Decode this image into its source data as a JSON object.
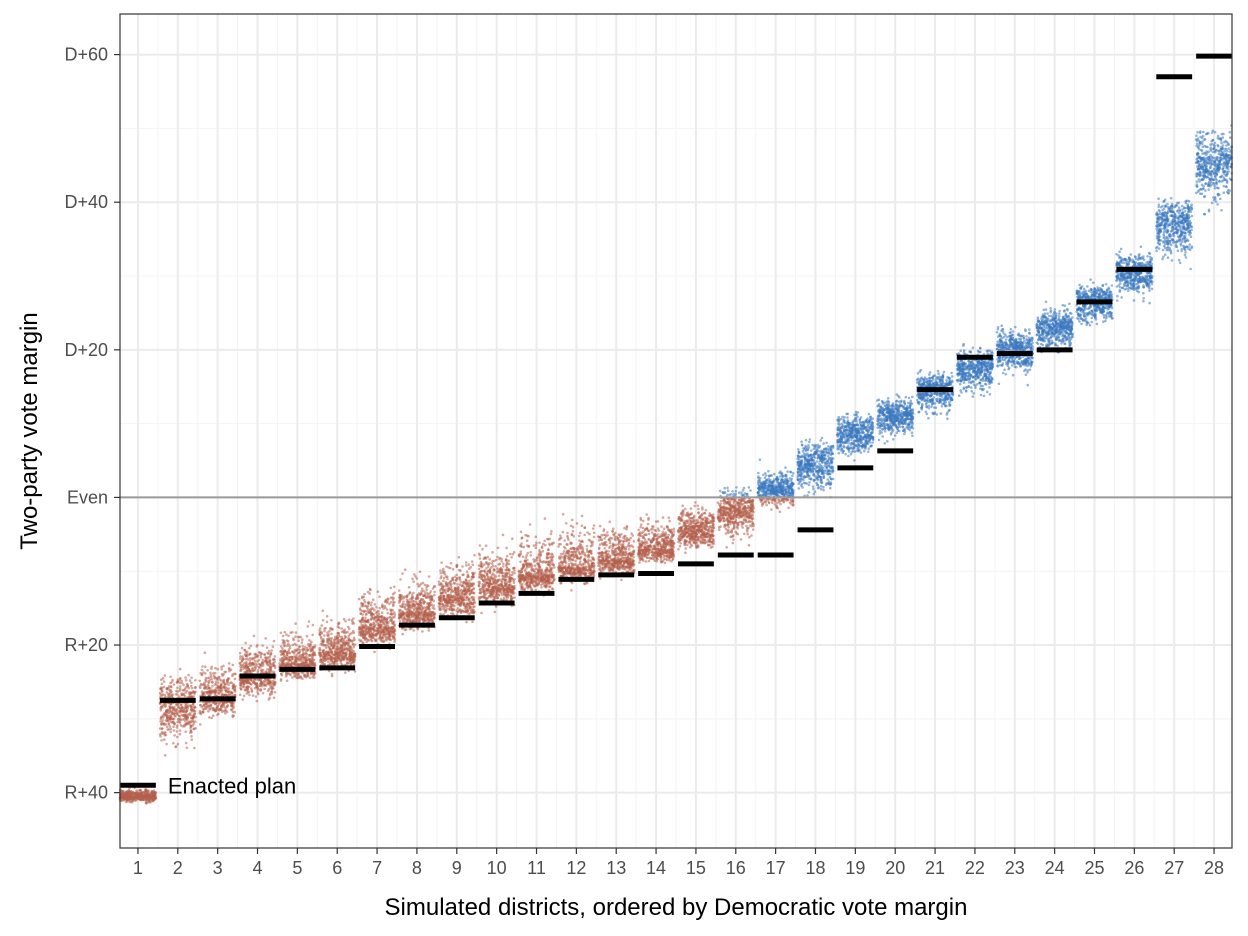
{
  "chart_data": {
    "type": "scatter",
    "xlabel": "Simulated districts, ordered by Democratic vote margin",
    "ylabel": "Two-party vote margin",
    "xlim": [
      0.55,
      28.45
    ],
    "ylim": [
      -47.5,
      65.5
    ],
    "x_ticks": [
      1,
      2,
      3,
      4,
      5,
      6,
      7,
      8,
      9,
      10,
      11,
      12,
      13,
      14,
      15,
      16,
      17,
      18,
      19,
      20,
      21,
      22,
      23,
      24,
      25,
      26,
      27,
      28
    ],
    "x_tick_labels": [
      "1",
      "2",
      "3",
      "4",
      "5",
      "6",
      "7",
      "8",
      "9",
      "10",
      "11",
      "12",
      "13",
      "14",
      "15",
      "16",
      "17",
      "18",
      "19",
      "20",
      "21",
      "22",
      "23",
      "24",
      "25",
      "26",
      "27",
      "28"
    ],
    "y_ticks": [
      60,
      40,
      20,
      0,
      -20,
      -40
    ],
    "y_tick_labels": [
      "D+60",
      "D+40",
      "D+20",
      "Even",
      "R+20",
      "R+40"
    ],
    "grid": true,
    "reference_line": {
      "y": 0,
      "color": "#9a9a9a"
    },
    "colors": {
      "democratic": "#3a78c0",
      "republican": "#b4604d",
      "enacted": "#000000"
    },
    "annotation": {
      "text": "Enacted plan",
      "district": 1
    },
    "simulated_districts": {
      "x": [
        1,
        2,
        3,
        4,
        5,
        6,
        7,
        8,
        9,
        10,
        11,
        12,
        13,
        14,
        15,
        16,
        17,
        18,
        19,
        20,
        21,
        22,
        23,
        24,
        25,
        26,
        27,
        28
      ],
      "center": [
        -40.5,
        -28.5,
        -27,
        -24,
        -22.5,
        -21,
        -17.5,
        -15.5,
        -13.5,
        -12,
        -10.5,
        -9.5,
        -8.5,
        -7,
        -4.5,
        -2,
        1,
        4.5,
        8.5,
        11,
        14.5,
        17.5,
        20,
        23,
        26.5,
        30.5,
        37,
        45
      ],
      "low": [
        -42.5,
        -40.5,
        -33.5,
        -31.5,
        -28,
        -27,
        -24.5,
        -22,
        -20.5,
        -18.5,
        -16.5,
        -14.5,
        -13,
        -11.5,
        -11,
        -10.5,
        -4.5,
        -4.5,
        1.5,
        4,
        7,
        9.5,
        12,
        15.5,
        19,
        22.5,
        24.5,
        32.5
      ],
      "high": [
        -38,
        -16.5,
        -16.5,
        -14,
        -11.5,
        -9.5,
        -6,
        -3.5,
        -1.5,
        1,
        3,
        4,
        3,
        3,
        3,
        6,
        8,
        12,
        15.5,
        17.5,
        20.5,
        24.5,
        27,
        29.5,
        32,
        37.5,
        46,
        56.5
      ]
    },
    "enacted_plan": {
      "x": [
        1,
        2,
        3,
        4,
        5,
        6,
        7,
        8,
        9,
        10,
        11,
        12,
        13,
        14,
        15,
        16,
        17,
        18,
        19,
        20,
        21,
        22,
        23,
        24,
        25,
        26,
        27,
        28
      ],
      "y": [
        -39,
        -27.5,
        -27.3,
        -24.2,
        -23.3,
        -23.1,
        -20.2,
        -17.3,
        -16.3,
        -14.3,
        -13,
        -11.1,
        -10.5,
        -10.3,
        -9,
        -7.8,
        -7.8,
        -4.4,
        4,
        6.3,
        14.6,
        19,
        19.5,
        20,
        26.5,
        30.9,
        57,
        59.8
      ]
    }
  }
}
